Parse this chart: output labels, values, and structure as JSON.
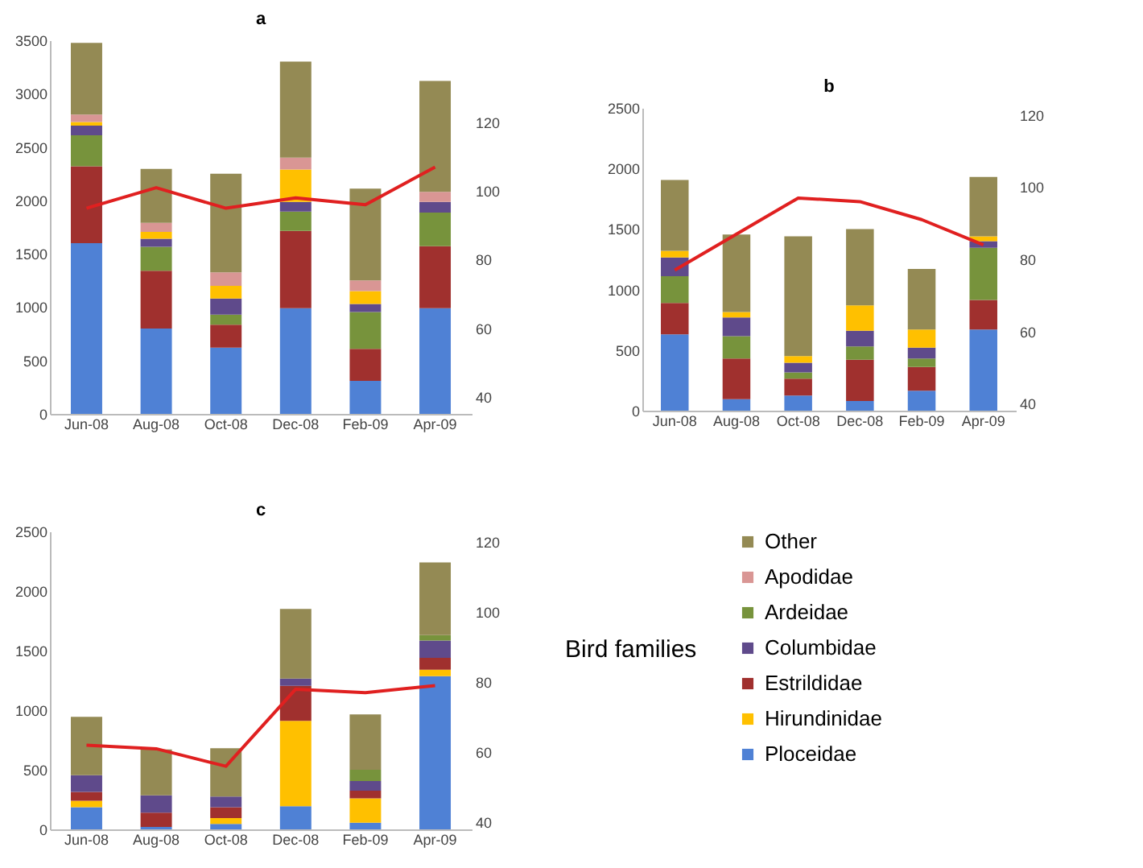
{
  "chart_data": [
    {
      "type": "bar",
      "title": "a",
      "stacked": true,
      "categories": [
        "Jun-08",
        "Aug-08",
        "Oct-08",
        "Dec-08",
        "Feb-09",
        "Apr-09"
      ],
      "ylim": [
        0,
        3500
      ],
      "yticks": [
        0,
        500,
        1000,
        1500,
        2000,
        2500,
        3000,
        3500
      ],
      "y2lim": [
        35,
        144
      ],
      "y2ticks": [
        40,
        60,
        80,
        100,
        120
      ],
      "series": [
        {
          "color": "#4f81d5",
          "values": [
            1600,
            800,
            620,
            990,
            310,
            990
          ]
        },
        {
          "color": "#a0302e",
          "values": [
            720,
            540,
            215,
            725,
            300,
            580
          ]
        },
        {
          "color": "#77933c",
          "values": [
            290,
            225,
            95,
            180,
            345,
            315
          ]
        },
        {
          "color": "#5f4a8b",
          "values": [
            90,
            75,
            150,
            90,
            75,
            100
          ]
        },
        {
          "color": "#ffc000",
          "values": [
            35,
            65,
            120,
            305,
            120,
            null
          ]
        },
        {
          "color": "#d99694",
          "values": [
            70,
            85,
            125,
            110,
            100,
            95
          ]
        },
        {
          "color": "#948a54",
          "values": [
            670,
            505,
            925,
            900,
            860,
            1040
          ]
        },
        {
          "type": "line",
          "axis": "y2",
          "color": "#e02020",
          "values": [
            95,
            101,
            95,
            98,
            96,
            107
          ]
        }
      ]
    },
    {
      "type": "bar",
      "title": "b",
      "stacked": true,
      "categories": [
        "Jun-08",
        "Aug-08",
        "Oct-08",
        "Dec-08",
        "Feb-09",
        "Apr-09"
      ],
      "ylim": [
        0,
        2500
      ],
      "yticks": [
        0,
        500,
        1000,
        1500,
        2000,
        2500
      ],
      "y2lim": [
        38,
        122
      ],
      "y2ticks": [
        40,
        60,
        80,
        100,
        120
      ],
      "series": [
        {
          "color": "#4f81d5",
          "values": [
            630,
            95,
            125,
            80,
            165,
            670
          ]
        },
        {
          "color": "#a0302e",
          "values": [
            260,
            335,
            140,
            340,
            195,
            245
          ]
        },
        {
          "color": "#77933c",
          "values": [
            220,
            185,
            50,
            110,
            70,
            430
          ]
        },
        {
          "color": "#5f4a8b",
          "values": [
            155,
            155,
            80,
            130,
            90,
            55
          ]
        },
        {
          "color": "#ffc000",
          "values": [
            55,
            45,
            55,
            210,
            150,
            40
          ]
        },
        {
          "color": "#948a54",
          "values": [
            585,
            640,
            990,
            630,
            500,
            490
          ]
        },
        {
          "type": "line",
          "axis": "y2",
          "color": "#e02020",
          "values": [
            77,
            87,
            97,
            96,
            91,
            84
          ]
        }
      ]
    },
    {
      "type": "bar",
      "title": "c",
      "stacked": true,
      "legend": "right",
      "legend_title": "Bird families",
      "categories": [
        "Jun-08",
        "Aug-08",
        "Oct-08",
        "Dec-08",
        "Feb-09",
        "Apr-09"
      ],
      "ylim": [
        0,
        2500
      ],
      "yticks": [
        0,
        500,
        1000,
        1500,
        2000,
        2500
      ],
      "y2lim": [
        38,
        123
      ],
      "y2ticks": [
        40,
        60,
        80,
        100,
        120
      ],
      "series": [
        {
          "name": "Ploceidae",
          "color": "#4f81d5",
          "values": [
            185,
            20,
            45,
            195,
            55,
            1285
          ]
        },
        {
          "name": "Hirundinidae",
          "color": "#ffc000",
          "values": [
            55,
            null,
            50,
            715,
            205,
            55
          ]
        },
        {
          "name": "Estrildidae",
          "color": "#a0302e",
          "values": [
            75,
            120,
            90,
            295,
            65,
            100
          ]
        },
        {
          "name": "Columbidae",
          "color": "#5f4a8b",
          "values": [
            140,
            145,
            90,
            60,
            80,
            145
          ]
        },
        {
          "name": "Ardeidae",
          "color": "#77933c",
          "values": [
            null,
            null,
            null,
            null,
            95,
            45
          ]
        },
        {
          "name": "Apodidae",
          "color": "#d99694",
          "values": [
            null,
            null,
            null,
            null,
            null,
            null
          ]
        },
        {
          "name": "Other",
          "color": "#948a54",
          "values": [
            490,
            385,
            405,
            585,
            465,
            610
          ]
        },
        {
          "type": "line",
          "axis": "y2",
          "color": "#e02020",
          "values": [
            62,
            61,
            56,
            78,
            77,
            79
          ]
        }
      ]
    }
  ]
}
